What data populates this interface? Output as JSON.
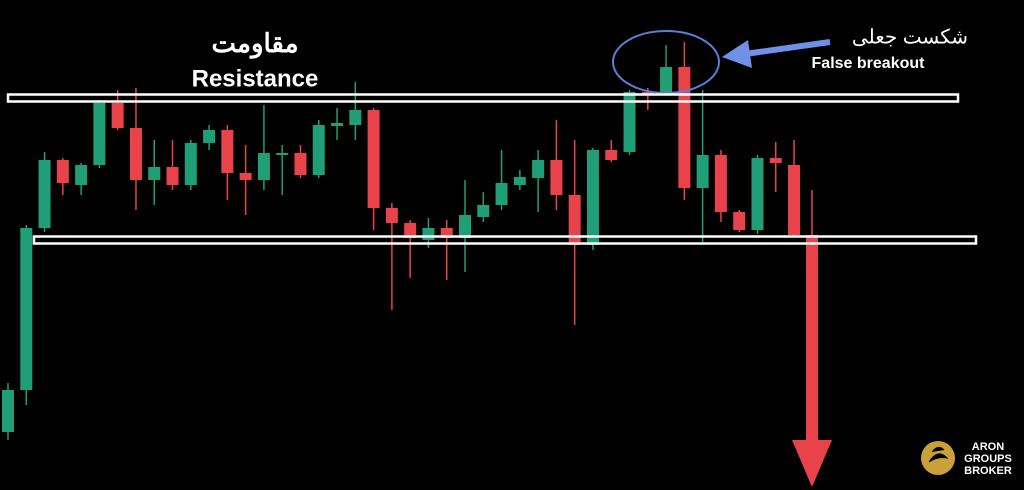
{
  "chart_data": {
    "type": "candlestick",
    "title": "مقاومت",
    "subtitle": "Resistance",
    "annotation": {
      "title": "شکست جعلی",
      "text": "False breakout"
    },
    "ylim": [
      0,
      490
    ],
    "up_color": "#1f9e77",
    "down_color": "#e8424a",
    "resistance_level": 392,
    "support_level": 250,
    "open": [
      58,
      100,
      262,
      330,
      305,
      325,
      387,
      362,
      310,
      323,
      305,
      347,
      360,
      317,
      310,
      335,
      337,
      315,
      364,
      365,
      380,
      282,
      267,
      250,
      262,
      252,
      273,
      285,
      305,
      312,
      330,
      295,
      245,
      340,
      338,
      398,
      395,
      423,
      302,
      335,
      278,
      260,
      332,
      325
    ],
    "close": [
      100,
      262,
      330,
      307,
      325,
      387,
      362,
      310,
      323,
      305,
      347,
      360,
      317,
      310,
      337,
      337,
      315,
      365,
      367,
      380,
      282,
      267,
      252,
      262,
      252,
      275,
      285,
      307,
      313,
      330,
      295,
      245,
      340,
      330,
      398,
      395,
      423,
      302,
      335,
      278,
      260,
      332,
      327,
      255
    ],
    "high": [
      107,
      265,
      338,
      332,
      327,
      390,
      400,
      402,
      350,
      350,
      350,
      365,
      365,
      345,
      385,
      345,
      345,
      370,
      382,
      408,
      382,
      287,
      270,
      272,
      270,
      310,
      298,
      340,
      320,
      340,
      370,
      350,
      342,
      350,
      400,
      402,
      445,
      448,
      400,
      340,
      280,
      335,
      348,
      350
    ],
    "low": [
      50,
      85,
      258,
      295,
      295,
      322,
      360,
      280,
      285,
      300,
      300,
      340,
      290,
      275,
      300,
      295,
      312,
      312,
      350,
      350,
      260,
      180,
      212,
      242,
      210,
      218,
      268,
      280,
      300,
      278,
      280,
      165,
      240,
      328,
      335,
      380,
      395,
      290,
      248,
      268,
      258,
      256,
      298,
      253
    ]
  },
  "logo": {
    "line1": "ARON",
    "line2": "GROUPS",
    "line3": "BROKER"
  }
}
